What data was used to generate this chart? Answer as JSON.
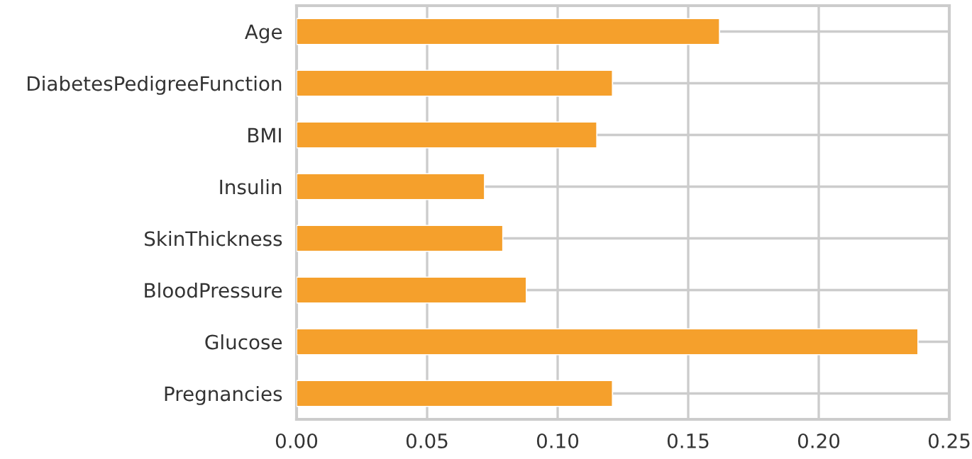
{
  "chart_data": {
    "type": "bar",
    "orientation": "horizontal",
    "categories": [
      "Age",
      "DiabetesPedigreeFunction",
      "BMI",
      "Insulin",
      "SkinThickness",
      "BloodPressure",
      "Glucose",
      "Pregnancies"
    ],
    "values": [
      0.162,
      0.121,
      0.115,
      0.072,
      0.079,
      0.088,
      0.238,
      0.121
    ],
    "color": "#f5a02c",
    "xlim": [
      0,
      0.25
    ],
    "xticks": [
      {
        "value": 0,
        "label": "0.00"
      },
      {
        "value": 0.05,
        "label": "0.05"
      },
      {
        "value": 0.1,
        "label": "0.10"
      },
      {
        "value": 0.15,
        "label": "0.15"
      },
      {
        "value": 0.2,
        "label": "0.20"
      },
      {
        "value": 0.25,
        "label": "0.25"
      }
    ],
    "grid": true
  }
}
